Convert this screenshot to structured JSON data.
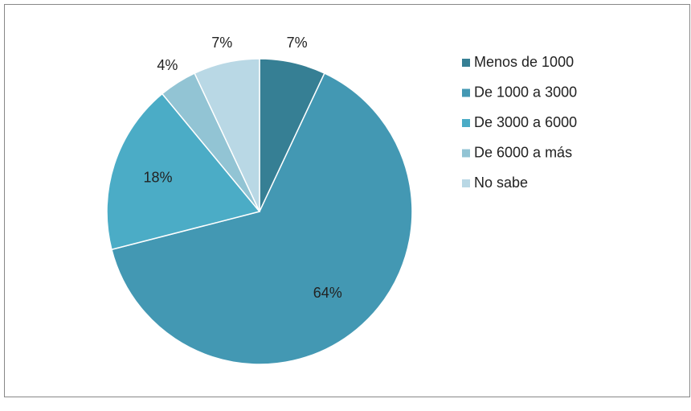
{
  "chart_data": {
    "type": "pie",
    "categories": [
      "Menos de 1000",
      "De 1000 a 3000",
      "De 3000 a 6000",
      "De 6000 a más",
      "No sabe"
    ],
    "values": [
      7,
      64,
      18,
      4,
      7
    ],
    "value_labels": [
      "7%",
      "64%",
      "18%",
      "4%",
      "7%"
    ],
    "colors": [
      "#367f94",
      "#4398b3",
      "#4bacc6",
      "#92c4d4",
      "#b9d8e5"
    ],
    "legend": "right"
  }
}
